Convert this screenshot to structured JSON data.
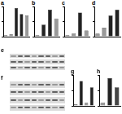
{
  "chart_data": [
    {
      "type": "bar",
      "title": "a",
      "categories": [
        null,
        null,
        null,
        null,
        null
      ],
      "values": [
        5,
        8,
        95,
        75,
        70
      ],
      "colors": [
        "#999999",
        "#999999",
        "#222222",
        "#222222",
        "#999999"
      ],
      "ylim": [
        0,
        100
      ],
      "yticks": [
        0,
        50,
        100
      ],
      "grid": false,
      "tick_labels": false
    },
    {
      "type": "bar",
      "title": "b",
      "categories": [
        null,
        null,
        null,
        null
      ],
      "values": [
        5,
        40,
        90,
        60
      ],
      "colors": [
        "#999999",
        "#222222",
        "#222222",
        "#999999"
      ],
      "ylim": [
        0,
        100
      ],
      "yticks": [
        0,
        50,
        100
      ],
      "grid": false,
      "tick_labels": false
    },
    {
      "type": "bar",
      "title": "c",
      "categories": [
        null,
        null,
        null,
        null
      ],
      "values": [
        5,
        10,
        80,
        20
      ],
      "colors": [
        "#999999",
        "#999999",
        "#222222",
        "#999999"
      ],
      "ylim": [
        0,
        100
      ],
      "yticks": [
        0,
        50,
        100
      ],
      "grid": false,
      "tick_labels": false
    },
    {
      "type": "bar",
      "title": "d",
      "categories": [
        null,
        null,
        null,
        null
      ],
      "values": [
        10,
        30,
        70,
        90
      ],
      "colors": [
        "#999999",
        "#999999",
        "#222222",
        "#222222"
      ],
      "ylim": [
        0,
        100
      ],
      "yticks": [
        0,
        50,
        100
      ],
      "grid": false,
      "tick_labels": false
    },
    {
      "type": "bar",
      "title": "g",
      "categories": [
        null,
        null,
        null,
        null
      ],
      "values": [
        5,
        80,
        10,
        60
      ],
      "colors": [
        "#999999",
        "#222222",
        "#999999",
        "#222222"
      ],
      "ylim": [
        0,
        100
      ],
      "yticks": [
        0,
        50,
        100
      ],
      "grid": false,
      "tick_labels": false
    },
    {
      "type": "bar",
      "title": "h",
      "categories": [
        null,
        null,
        null
      ],
      "values": [
        10,
        90,
        60
      ],
      "colors": [
        "#999999",
        "#222222",
        "#444444"
      ],
      "ylim": [
        0,
        100
      ],
      "yticks": [
        0,
        50,
        100
      ],
      "grid": false,
      "tick_labels": false
    }
  ],
  "blots": [
    {
      "label": "e"
    },
    {
      "label": "f"
    }
  ]
}
